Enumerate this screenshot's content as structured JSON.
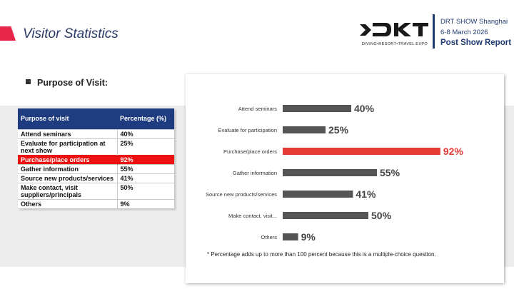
{
  "header": {
    "title": "Visitor Statistics",
    "logo_tagline": "DIVING•RESORT•TRAVEL EXPO",
    "show_name": "DRT SHOW Shanghai",
    "show_dates": "6-8 March 2026",
    "report": "Post Show Report"
  },
  "section_title": "Purpose of Visit:",
  "table": {
    "headers": [
      "Purpose of visit",
      "Percentage (%)"
    ],
    "rows": [
      {
        "label": "Attend seminars",
        "value": "40%"
      },
      {
        "label": "Evaluate for participation at next show",
        "value": "25%"
      },
      {
        "label": "Purchase/place orders",
        "value": "92%"
      },
      {
        "label": "Gather information",
        "value": "55%"
      },
      {
        "label": "Source new products/services",
        "value": "41%"
      },
      {
        "label": "Make contact, visit suppliers/principals",
        "value": "50%"
      },
      {
        "label": "Others",
        "value": "9%"
      }
    ],
    "highlight_row": 2
  },
  "chart_data": {
    "type": "bar",
    "orientation": "horizontal",
    "categories": [
      "Attend seminars",
      "Evaluate for participation",
      "Purchase/place orders",
      "Gather information",
      "Source new products/services",
      "Make contact, visit...",
      "Others"
    ],
    "values": [
      40,
      25,
      92,
      55,
      41,
      50,
      9
    ],
    "value_labels": [
      "40%",
      "25%",
      "92%",
      "55%",
      "41%",
      "50%",
      "9%"
    ],
    "highlight_index": 2,
    "colors": {
      "default": "#555555",
      "highlight": "#e53935"
    },
    "xlim": [
      0,
      100
    ],
    "grid": false,
    "footnote": "* Percentage adds up to more than 100 percent because this is a multiple-choice question."
  }
}
